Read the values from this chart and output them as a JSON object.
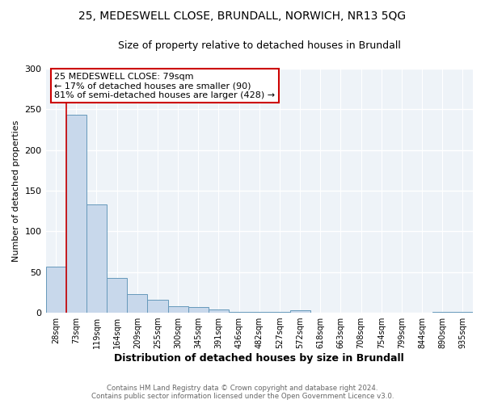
{
  "title1": "25, MEDESWELL CLOSE, BRUNDALL, NORWICH, NR13 5QG",
  "title2": "Size of property relative to detached houses in Brundall",
  "xlabel": "Distribution of detached houses by size in Brundall",
  "ylabel": "Number of detached properties",
  "categories": [
    "28sqm",
    "73sqm",
    "119sqm",
    "164sqm",
    "209sqm",
    "255sqm",
    "300sqm",
    "345sqm",
    "391sqm",
    "436sqm",
    "482sqm",
    "527sqm",
    "572sqm",
    "618sqm",
    "663sqm",
    "708sqm",
    "754sqm",
    "799sqm",
    "844sqm",
    "890sqm",
    "935sqm"
  ],
  "values": [
    57,
    243,
    133,
    43,
    23,
    16,
    8,
    7,
    4,
    1,
    1,
    1,
    3,
    0,
    0,
    0,
    0,
    0,
    0,
    1,
    1
  ],
  "bar_color": "#c8d8eb",
  "bar_edge_color": "#6699bb",
  "annotation_box_text": [
    "25 MEDESWELL CLOSE: 79sqm",
    "← 17% of detached houses are smaller (90)",
    "81% of semi-detached houses are larger (428) →"
  ],
  "annotation_box_color": "white",
  "annotation_box_edge_color": "#cc0000",
  "vline_color": "#cc0000",
  "ylim": [
    0,
    300
  ],
  "yticks": [
    0,
    50,
    100,
    150,
    200,
    250,
    300
  ],
  "footer1": "Contains HM Land Registry data © Crown copyright and database right 2024.",
  "footer2": "Contains public sector information licensed under the Open Government Licence v3.0.",
  "bg_color": "#eef3f8",
  "grid_color": "white",
  "title1_fontsize": 10,
  "title2_fontsize": 9
}
